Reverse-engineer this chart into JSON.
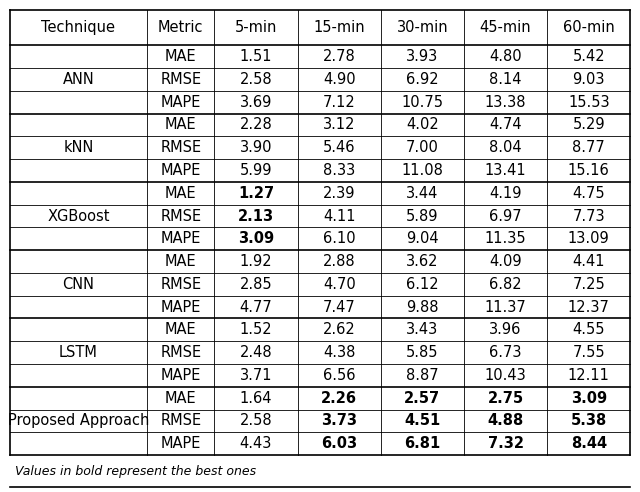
{
  "caption": "Values in bold represent the best ones",
  "headers": [
    "Technique",
    "Metric",
    "5-min",
    "15-min",
    "30-min",
    "45-min",
    "60-min"
  ],
  "techniques": [
    "ANN",
    "kNN",
    "XGBoost",
    "CNN",
    "LSTM",
    "Proposed Approach"
  ],
  "metrics": [
    "MAE",
    "RMSE",
    "MAPE"
  ],
  "data": {
    "ANN": {
      "MAE": [
        "1.51",
        "2.78",
        "3.93",
        "4.80",
        "5.42"
      ],
      "RMSE": [
        "2.58",
        "4.90",
        "6.92",
        "8.14",
        "9.03"
      ],
      "MAPE": [
        "3.69",
        "7.12",
        "10.75",
        "13.38",
        "15.53"
      ]
    },
    "kNN": {
      "MAE": [
        "2.28",
        "3.12",
        "4.02",
        "4.74",
        "5.29"
      ],
      "RMSE": [
        "3.90",
        "5.46",
        "7.00",
        "8.04",
        "8.77"
      ],
      "MAPE": [
        "5.99",
        "8.33",
        "11.08",
        "13.41",
        "15.16"
      ]
    },
    "XGBoost": {
      "MAE": [
        "1.27",
        "2.39",
        "3.44",
        "4.19",
        "4.75"
      ],
      "RMSE": [
        "2.13",
        "4.11",
        "5.89",
        "6.97",
        "7.73"
      ],
      "MAPE": [
        "3.09",
        "6.10",
        "9.04",
        "11.35",
        "13.09"
      ]
    },
    "CNN": {
      "MAE": [
        "1.92",
        "2.88",
        "3.62",
        "4.09",
        "4.41"
      ],
      "RMSE": [
        "2.85",
        "4.70",
        "6.12",
        "6.82",
        "7.25"
      ],
      "MAPE": [
        "4.77",
        "7.47",
        "9.88",
        "11.37",
        "12.37"
      ]
    },
    "LSTM": {
      "MAE": [
        "1.52",
        "2.62",
        "3.43",
        "3.96",
        "4.55"
      ],
      "RMSE": [
        "2.48",
        "4.38",
        "5.85",
        "6.73",
        "7.55"
      ],
      "MAPE": [
        "3.71",
        "6.56",
        "8.87",
        "10.43",
        "12.11"
      ]
    },
    "Proposed Approach": {
      "MAE": [
        "1.64",
        "2.26",
        "2.57",
        "2.75",
        "3.09"
      ],
      "RMSE": [
        "2.58",
        "3.73",
        "4.51",
        "4.88",
        "5.38"
      ],
      "MAPE": [
        "4.43",
        "6.03",
        "6.81",
        "7.32",
        "8.44"
      ]
    }
  },
  "bold": {
    "XGBoost": {
      "MAE": [
        true,
        false,
        false,
        false,
        false
      ],
      "RMSE": [
        true,
        false,
        false,
        false,
        false
      ],
      "MAPE": [
        true,
        false,
        false,
        false,
        false
      ]
    },
    "Proposed Approach": {
      "MAE": [
        false,
        true,
        true,
        true,
        true
      ],
      "RMSE": [
        false,
        true,
        true,
        true,
        true
      ],
      "MAPE": [
        false,
        true,
        true,
        true,
        true
      ]
    }
  },
  "bg_color": "#ffffff",
  "thick_border_lw": 1.2,
  "thin_border_lw": 0.6,
  "header_fontsize": 10.5,
  "cell_fontsize": 10.5,
  "caption_fontsize": 9.0
}
